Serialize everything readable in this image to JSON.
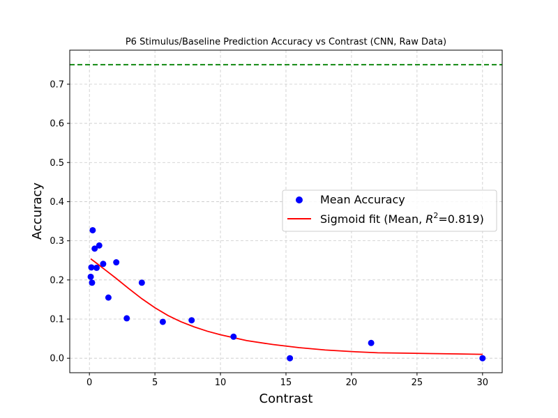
{
  "chart_data": {
    "type": "scatter",
    "title": "P6 Stimulus/Baseline Prediction Accuracy vs Contrast (CNN, Raw Data)",
    "xlabel": "Contrast",
    "ylabel": "Accuracy",
    "xlim": [
      -1.5,
      31.5
    ],
    "ylim": [
      -0.037,
      0.787
    ],
    "xticks": [
      0,
      5,
      10,
      15,
      20,
      25,
      30
    ],
    "yticks": [
      0.0,
      0.1,
      0.2,
      0.3,
      0.4,
      0.5,
      0.6,
      0.7
    ],
    "grid": true,
    "legend_position": "center-right",
    "series": [
      {
        "name": "Mean Accuracy",
        "kind": "scatter",
        "color": "#0000ff",
        "x": [
          0.1,
          0.15,
          0.2,
          0.25,
          0.4,
          0.55,
          0.75,
          1.05,
          1.45,
          2.05,
          2.85,
          4.0,
          5.6,
          7.8,
          11.0,
          15.3,
          21.5,
          30.0
        ],
        "y": [
          0.208,
          0.232,
          0.193,
          0.327,
          0.28,
          0.231,
          0.288,
          0.241,
          0.155,
          0.245,
          0.102,
          0.193,
          0.093,
          0.097,
          0.055,
          0.0,
          0.039,
          0.0
        ]
      },
      {
        "name": "Sigmoid fit (Mean, R²=0.819)",
        "legend_prefix": "Sigmoid fit (Mean, ",
        "legend_r": "R",
        "legend_sup": "2",
        "legend_suffix": "=0.819)",
        "kind": "line",
        "color": "#ff0000",
        "x": [
          0.1,
          0.5,
          1,
          1.5,
          2,
          3,
          4,
          5,
          6,
          7,
          8,
          9,
          10,
          12,
          14,
          16,
          18,
          20,
          22,
          24,
          26,
          28,
          30
        ],
        "y": [
          0.254,
          0.244,
          0.231,
          0.218,
          0.205,
          0.178,
          0.152,
          0.129,
          0.109,
          0.093,
          0.08,
          0.069,
          0.06,
          0.045,
          0.035,
          0.027,
          0.021,
          0.017,
          0.014,
          0.013,
          0.012,
          0.011,
          0.01
        ]
      },
      {
        "name": "",
        "kind": "hline",
        "color": "#008000",
        "y": 0.75
      }
    ]
  }
}
